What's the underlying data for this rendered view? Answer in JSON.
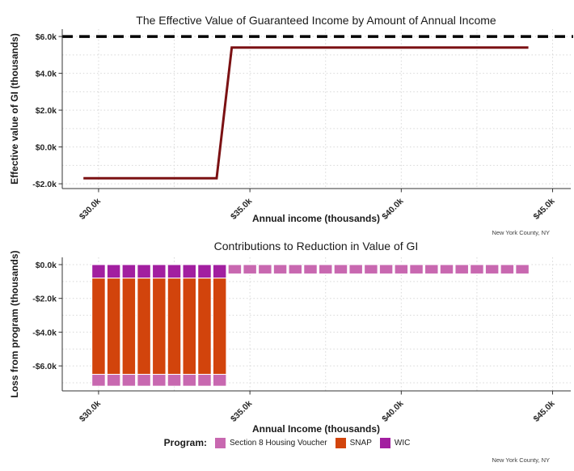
{
  "page": {
    "background": "#ffffff"
  },
  "chart_data": [
    {
      "type": "line",
      "title": "The Effective Value of Guaranteed Income by Amount of Annual Income",
      "xlabel": "Annual income (thousands)",
      "ylabel": "Effective value of GI (thousands)",
      "caption": "New York County, NY",
      "xlim": [
        28.8,
        45.6
      ],
      "ylim": [
        -2.26,
        6.4
      ],
      "x_ticks": {
        "values": [
          30,
          35,
          40,
          45
        ],
        "labels": [
          "$30.0k",
          "$35.0k",
          "$40.0k",
          "$45.0k"
        ]
      },
      "x_minor": [
        32.5,
        37.5,
        42.5
      ],
      "y_ticks": {
        "values": [
          6,
          4,
          2,
          0,
          -2
        ],
        "labels": [
          "$6.0k",
          "$4.0k",
          "$2.0k",
          "$0.0k",
          "-$2.0k"
        ]
      },
      "y_minor": [
        5,
        3,
        1,
        -1
      ],
      "grid": "dotted",
      "reference_line": {
        "y": 6.0,
        "color": "#000000",
        "style": "dashed",
        "width": 3.5
      },
      "series": [
        {
          "color": "#7B1113",
          "points": [
            [
              29.5,
              -1.7
            ],
            [
              33.9,
              -1.7
            ],
            [
              34.4,
              5.4
            ],
            [
              44.2,
              5.4
            ]
          ]
        }
      ]
    },
    {
      "type": "stacked_bar",
      "title": "Contributions to Reduction in Value of GI",
      "xlabel": "Annual Income (thousands)",
      "ylabel": "Loss from program (thousands)",
      "caption": "New York County, NY",
      "xlim": [
        28.8,
        45.6
      ],
      "ylim": [
        -7.48,
        0.43
      ],
      "x_ticks": {
        "values": [
          30,
          35,
          40,
          45
        ],
        "labels": [
          "$30.0k",
          "$35.0k",
          "$40.0k",
          "$45.0k"
        ]
      },
      "x_minor": [
        32.5,
        37.5,
        42.5
      ],
      "y_ticks": {
        "values": [
          0,
          -2,
          -4,
          -6
        ],
        "labels": [
          "$0.0k",
          "-$2.0k",
          "-$4.0k",
          "-$6.0k"
        ]
      },
      "y_minor": [
        -1,
        -3,
        -5,
        -7
      ],
      "grid": "dotted",
      "bar_width": 0.44,
      "categories": [
        30,
        30.5,
        31,
        31.5,
        32,
        32.5,
        33,
        33.5,
        34,
        34.5,
        35,
        35.5,
        36,
        36.5,
        37,
        37.5,
        38,
        38.5,
        39,
        39.5,
        40,
        40.5,
        41,
        41.5,
        42,
        42.5,
        43,
        43.5,
        44
      ],
      "series": [
        {
          "name": "WIC",
          "color": "#A21FA0",
          "values": [
            -0.8,
            -0.8,
            -0.8,
            -0.8,
            -0.8,
            -0.8,
            -0.8,
            -0.8,
            -0.8,
            0,
            0,
            0,
            0,
            0,
            0,
            0,
            0,
            0,
            0,
            0,
            0,
            0,
            0,
            0,
            0,
            0,
            0,
            0,
            0
          ]
        },
        {
          "name": "SNAP",
          "color": "#D2440C",
          "values": [
            -5.7,
            -5.7,
            -5.7,
            -5.7,
            -5.7,
            -5.7,
            -5.7,
            -5.7,
            -5.7,
            0,
            0,
            0,
            0,
            0,
            0,
            0,
            0,
            0,
            0,
            0,
            0,
            0,
            0,
            0,
            0,
            0,
            0,
            0,
            0
          ]
        },
        {
          "name": "Section 8 Housing Voucher",
          "color": "#C868B0",
          "values": [
            -0.7,
            -0.7,
            -0.7,
            -0.7,
            -0.7,
            -0.7,
            -0.7,
            -0.7,
            -0.7,
            -0.55,
            -0.55,
            -0.55,
            -0.55,
            -0.55,
            -0.55,
            -0.55,
            -0.55,
            -0.55,
            -0.55,
            -0.55,
            -0.55,
            -0.55,
            -0.55,
            -0.55,
            -0.55,
            -0.55,
            -0.55,
            -0.55,
            -0.55
          ]
        }
      ],
      "legend": {
        "title": "Program:",
        "order": [
          "Section 8 Housing Voucher",
          "SNAP",
          "WIC"
        ]
      }
    }
  ]
}
